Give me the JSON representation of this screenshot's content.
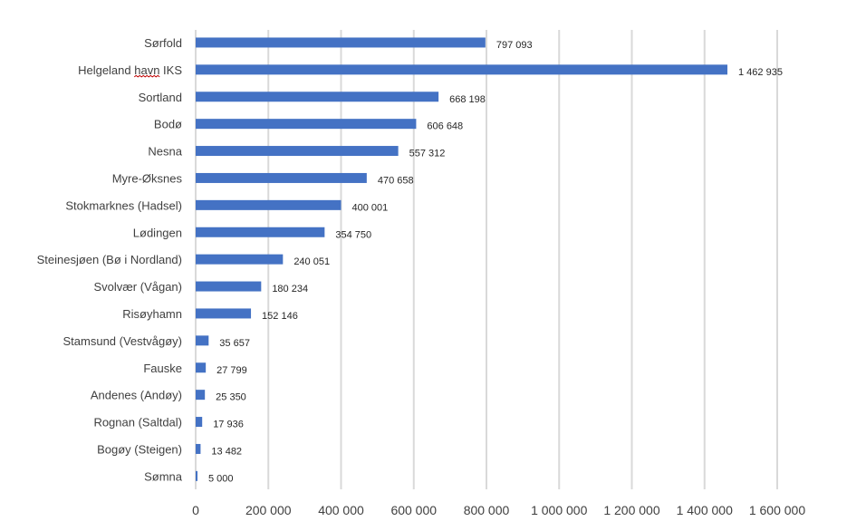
{
  "chart_data": {
    "type": "bar",
    "orientation": "horizontal",
    "categories": [
      "Sørfold",
      "Helgeland havn IKS",
      "Sortland",
      "Bodø",
      "Nesna",
      "Myre-Øksnes",
      "Stokmarknes (Hadsel)",
      "Lødingen",
      "Steinesjøen (Bø i Nordland)",
      "Svolvær (Vågan)",
      "Risøyhamn",
      "Stamsund (Vestvågøy)",
      "Fauske",
      "Andenes (Andøy)",
      "Rognan (Saltdal)",
      "Bogøy (Steigen)",
      "Sømna"
    ],
    "values": [
      797093,
      1462935,
      668198,
      606648,
      557312,
      470658,
      400001,
      354750,
      240051,
      180234,
      152146,
      35657,
      27799,
      25350,
      17936,
      13482,
      5000
    ],
    "data_labels": [
      "797 093",
      "1 462 935",
      "668 198",
      "606 648",
      "557 312",
      "470 658",
      "400 001",
      "354 750",
      "240 051",
      "180 234",
      "152 146",
      "35 657",
      "27 799",
      "25 350",
      "17 936",
      "13 482",
      "5 000"
    ],
    "x_ticks": [
      0,
      200000,
      400000,
      600000,
      800000,
      1000000,
      1200000,
      1400000,
      1600000
    ],
    "x_tick_labels": [
      "0",
      "200 000",
      "400 000",
      "600 000",
      "800 000",
      "1 000 000",
      "1 200 000",
      "1 400 000",
      "1 600 000"
    ],
    "xlim": [
      0,
      1600000
    ],
    "title": "",
    "xlabel": "",
    "ylabel": "",
    "grid": "vertical",
    "legend": "none",
    "bar_color": "#4472c4",
    "grid_color": "#d9d9d9",
    "text_color": "#404040"
  }
}
